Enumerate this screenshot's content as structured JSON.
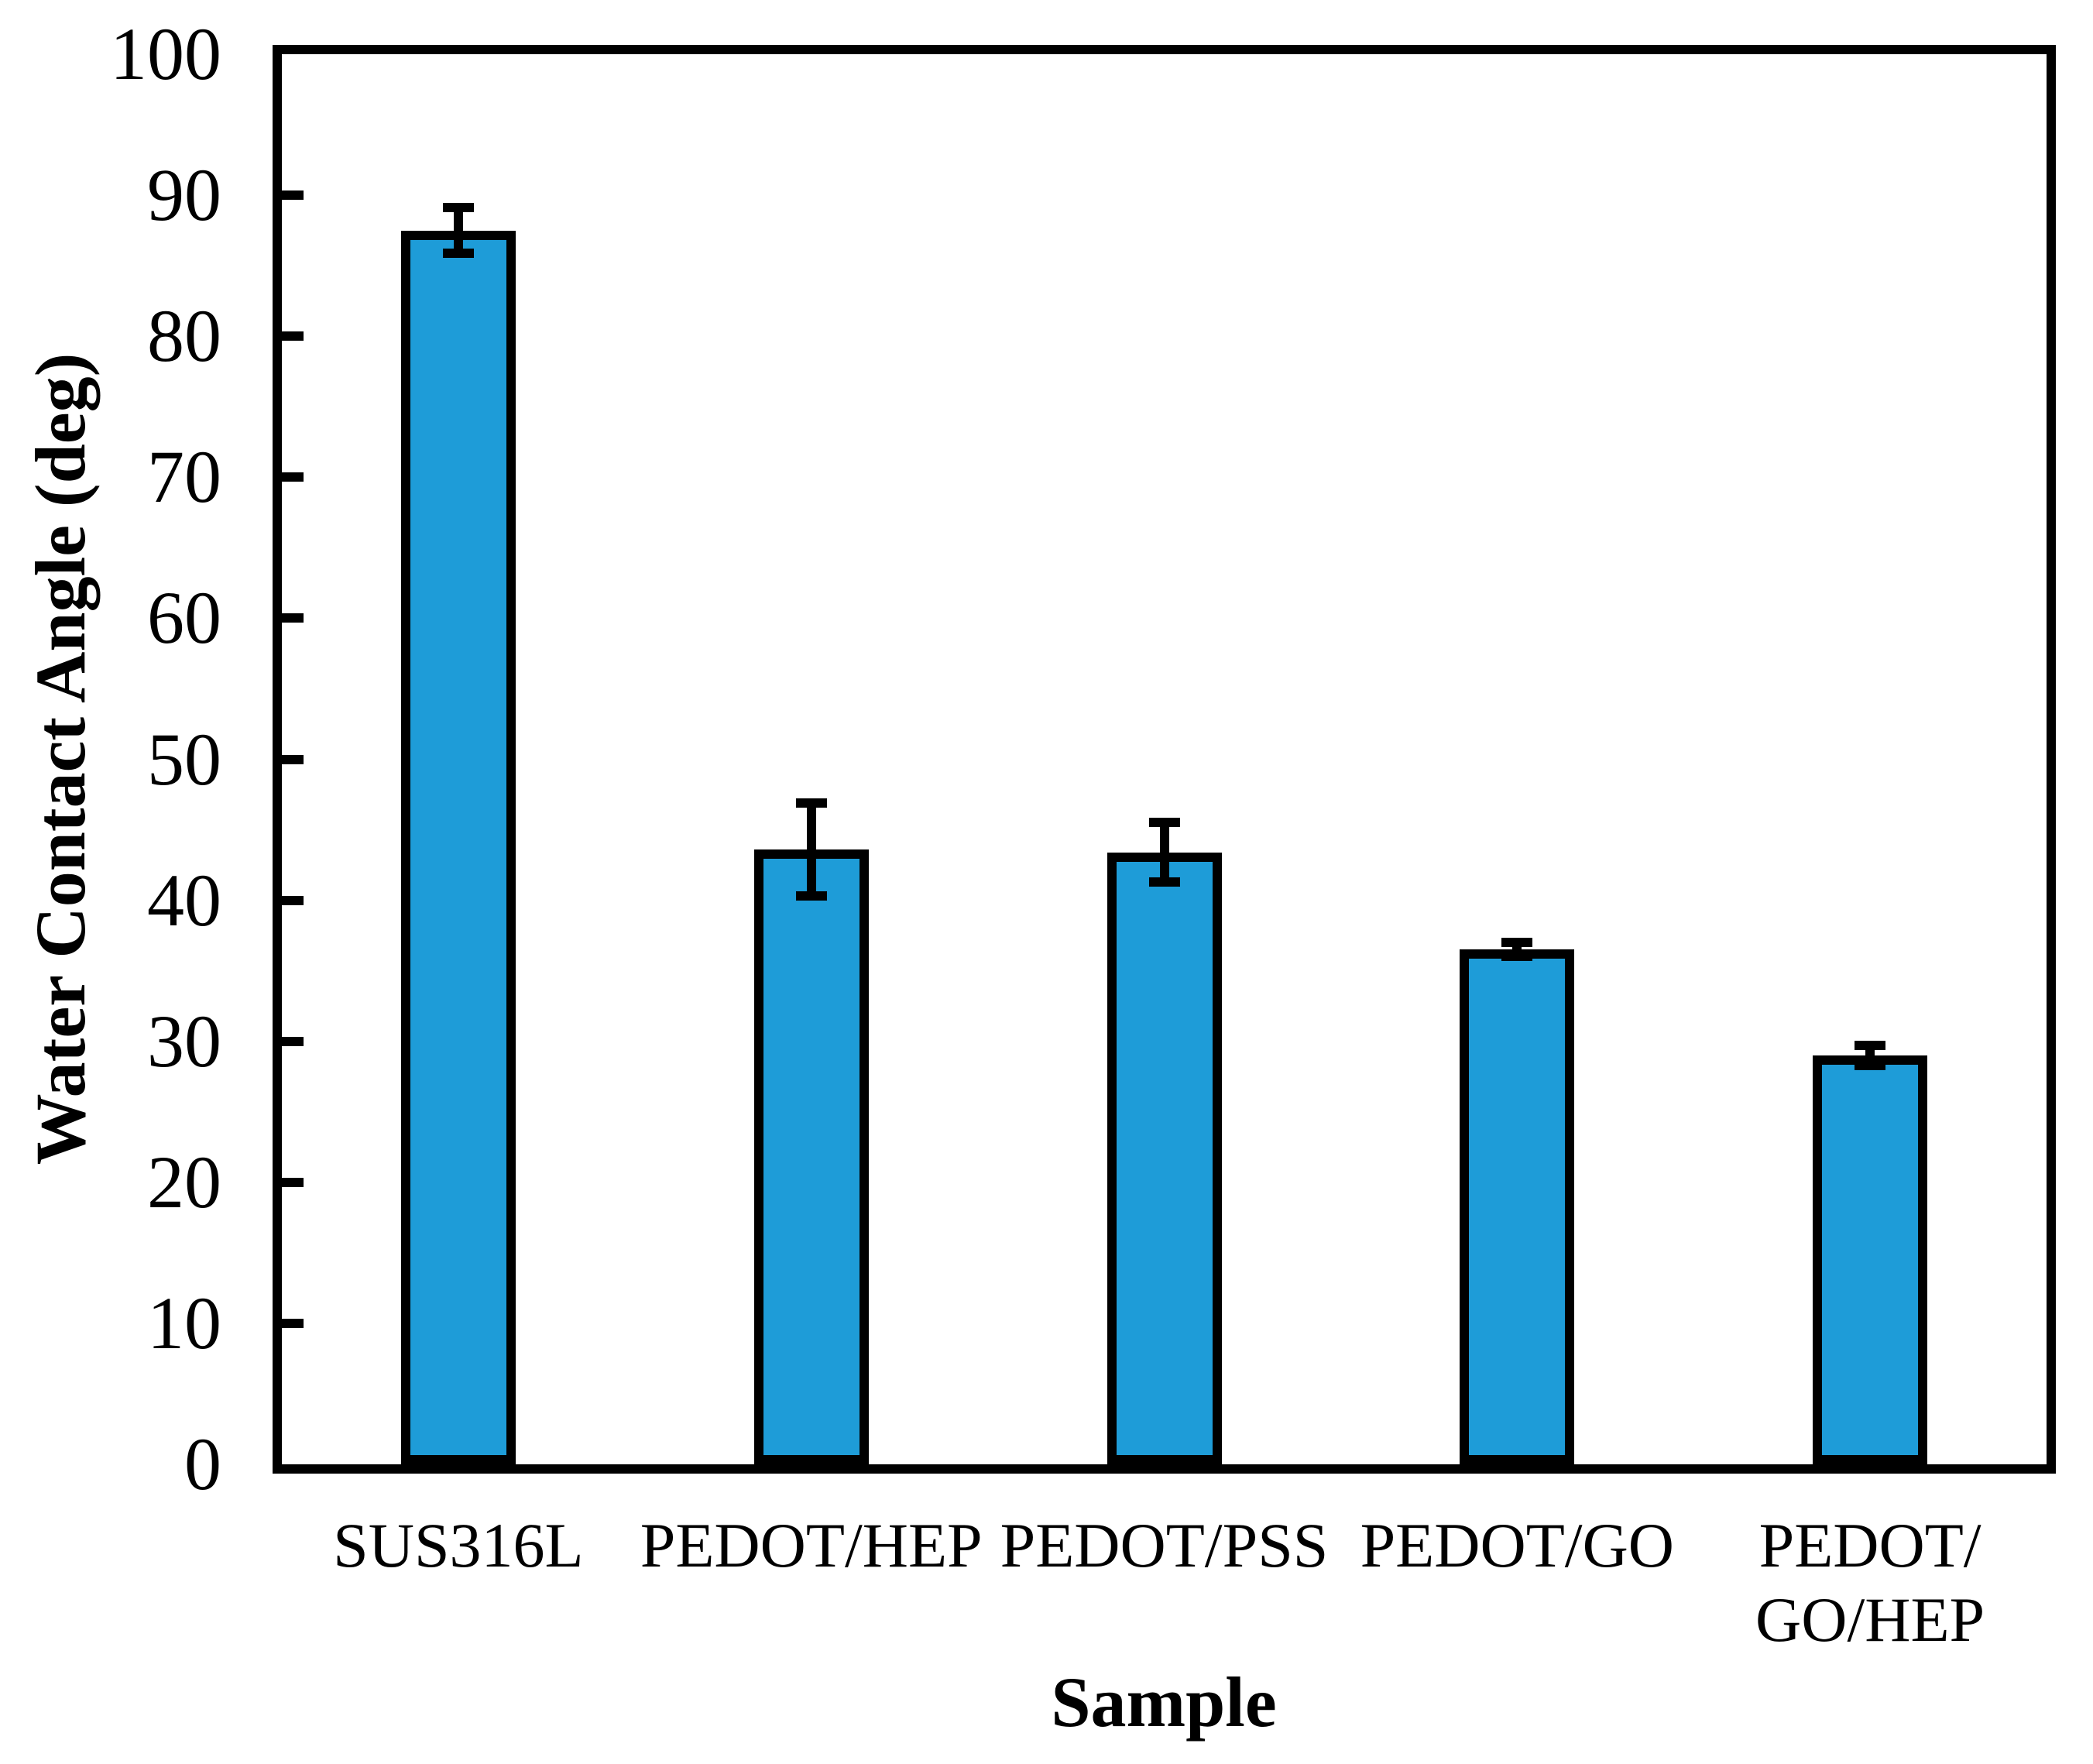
{
  "figure": {
    "background": "#ffffff",
    "bar_fill": "#1E9CD8",
    "bar_outline": "#000000",
    "axis_color": "#000000"
  },
  "chart_data": {
    "type": "bar",
    "title": "",
    "xlabel": "Sample",
    "ylabel": "Water Contact Angle (deg)",
    "categories": [
      "SUS316L",
      "PEDOT/HEP",
      "PEDOT/PSS",
      "PEDOT/GO",
      "PEDOT/\nGO/HEP"
    ],
    "values": [
      87.5,
      43.6,
      43.4,
      36.5,
      29.0
    ],
    "errors": [
      1.6,
      3.3,
      2.1,
      0.5,
      0.7
    ],
    "ylim": [
      0,
      100
    ],
    "ytick_interval": 10,
    "ytick_labels": [
      "0",
      "10",
      "20",
      "30",
      "40",
      "50",
      "60",
      "70",
      "80",
      "90",
      "100"
    ],
    "grid": false,
    "legend": null,
    "error_bars": true
  }
}
